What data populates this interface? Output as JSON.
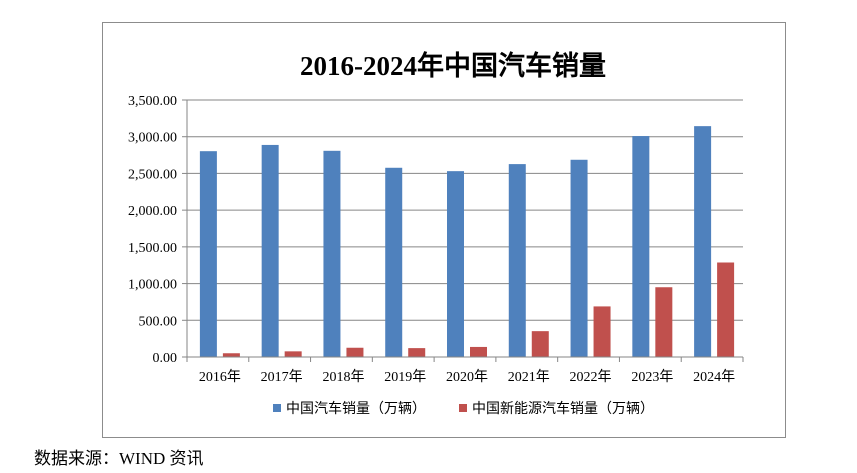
{
  "chart_data": {
    "type": "bar",
    "title": "2016-2024年中国汽车销量",
    "categories": [
      "2016年",
      "2017年",
      "2018年",
      "2019年",
      "2020年",
      "2021年",
      "2022年",
      "2023年",
      "2024年"
    ],
    "series": [
      {
        "name": "中国汽车销量（万辆）",
        "color": "#4f81bd",
        "values": [
          2803,
          2888,
          2808,
          2577,
          2531,
          2627,
          2686,
          3009,
          3144
        ]
      },
      {
        "name": "中国新能源汽车销量（万辆）",
        "color": "#c0504d",
        "values": [
          51,
          77,
          126,
          121,
          137,
          352,
          689,
          950,
          1287
        ]
      }
    ],
    "ylim": [
      0,
      3500
    ],
    "yticks": [
      "0.00",
      "500.00",
      "1,000.00",
      "1,500.00",
      "2,000.00",
      "2,500.00",
      "3,000.00",
      "3,500.00"
    ],
    "ytick_values": [
      0,
      500,
      1000,
      1500,
      2000,
      2500,
      3000,
      3500
    ],
    "grid": true,
    "legend_position": "bottom"
  },
  "source": "数据来源：WIND 资讯"
}
